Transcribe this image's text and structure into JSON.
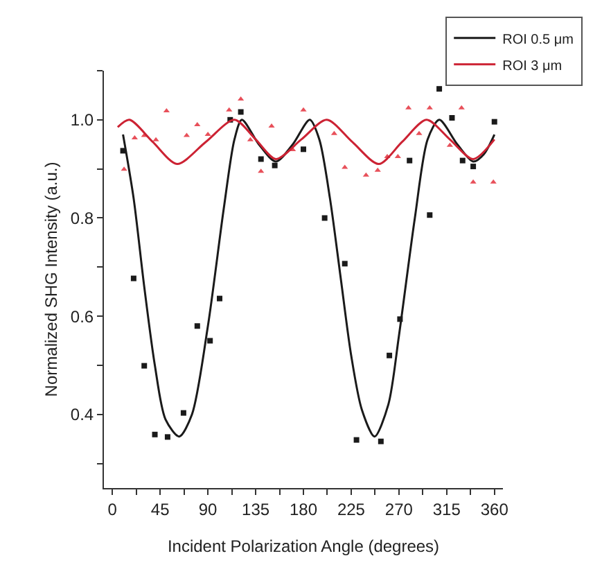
{
  "chart_data": {
    "type": "scatter",
    "xlabel": "Incident Polarization Angle (degrees)",
    "ylabel": "Normalized SHG Intensity (a.u.)",
    "xlim": [
      -8,
      368
    ],
    "ylim": [
      0.25,
      1.1
    ],
    "xticks": [
      0,
      {
        "value": 22.5,
        "label": null
      },
      45,
      {
        "value": 67.5,
        "label": null
      },
      90,
      {
        "value": 112.5,
        "label": null
      },
      135,
      {
        "value": 157.5,
        "label": null
      },
      180,
      {
        "value": 202.5,
        "label": null
      },
      225,
      {
        "value": 247.5,
        "label": null
      },
      270,
      {
        "value": 292.5,
        "label": null
      },
      315,
      {
        "value": 337.5,
        "label": null
      },
      360
    ],
    "yticks": [
      {
        "value": 0.3,
        "label": null
      },
      0.4,
      {
        "value": 0.5,
        "label": null
      },
      0.6,
      {
        "value": 0.7,
        "label": null
      },
      0.8,
      {
        "value": 0.9,
        "label": null
      },
      {
        "value": 1,
        "label": "1.0"
      },
      {
        "value": 1.1,
        "label": null
      }
    ],
    "grid": false,
    "legend": "top right",
    "series": [
      {
        "marker": "square",
        "color": "#1a1a1a",
        "x": [
          10,
          20,
          30,
          40,
          52,
          67,
          80,
          92,
          101,
          111,
          121,
          140,
          153,
          180,
          200,
          219,
          230,
          253,
          261,
          271,
          280,
          299,
          308,
          320,
          330,
          340,
          360
        ],
        "values": [
          0.937,
          0.677,
          0.499,
          0.359,
          0.354,
          0.403,
          0.58,
          0.55,
          0.636,
          1.0,
          1.016,
          0.92,
          0.907,
          0.94,
          0.8,
          0.707,
          0.348,
          0.345,
          0.52,
          0.594,
          0.917,
          0.806,
          1.063,
          1.004,
          0.917,
          0.905,
          0.996
        ]
      },
      {
        "marker": "triangle",
        "color": "#e8505a",
        "x": [
          11,
          21,
          30,
          41,
          51,
          70,
          80,
          90,
          110,
          121,
          130,
          140,
          150,
          170,
          180,
          209,
          219,
          239,
          250,
          259,
          269,
          279,
          289,
          299,
          318,
          329,
          340,
          359
        ],
        "values": [
          0.899,
          0.963,
          0.968,
          0.959,
          1.018,
          0.968,
          0.99,
          0.97,
          1.02,
          1.042,
          0.959,
          0.895,
          0.987,
          0.939,
          1.02,
          0.972,
          0.903,
          0.887,
          0.897,
          0.925,
          0.925,
          1.024,
          0.972,
          1.024,
          0.948,
          1.024,
          0.873,
          0.873
        ]
      },
      {
        "type": "line",
        "name": "ROI 0.5 μm",
        "color": "#1a1a1a",
        "x": [
          10,
          20,
          30,
          40,
          50,
          63,
          75,
          90,
          105,
          115,
          122,
          138,
          154,
          170,
          186,
          195,
          205,
          215,
          225,
          235,
          247,
          260,
          270,
          285,
          297,
          308,
          325,
          340,
          350,
          360
        ],
        "values": [
          0.97,
          0.84,
          0.66,
          0.5,
          0.39,
          0.355,
          0.4,
          0.58,
          0.82,
          0.96,
          1.0,
          0.95,
          0.915,
          0.95,
          1.0,
          0.96,
          0.84,
          0.68,
          0.52,
          0.41,
          0.355,
          0.42,
          0.56,
          0.8,
          0.96,
          1.0,
          0.95,
          0.915,
          0.93,
          0.97
        ]
      },
      {
        "type": "line",
        "name": "ROI 3 μm",
        "color": "#cc2233",
        "x": [
          5,
          16,
          38,
          61,
          88,
          115,
          135,
          154,
          178,
          202,
          226,
          251,
          273,
          296,
          318,
          340,
          360
        ],
        "values": [
          0.985,
          1.0,
          0.955,
          0.91,
          0.955,
          1.0,
          0.96,
          0.92,
          0.96,
          1.0,
          0.955,
          0.91,
          0.955,
          1.0,
          0.96,
          0.92,
          0.96
        ]
      }
    ]
  }
}
